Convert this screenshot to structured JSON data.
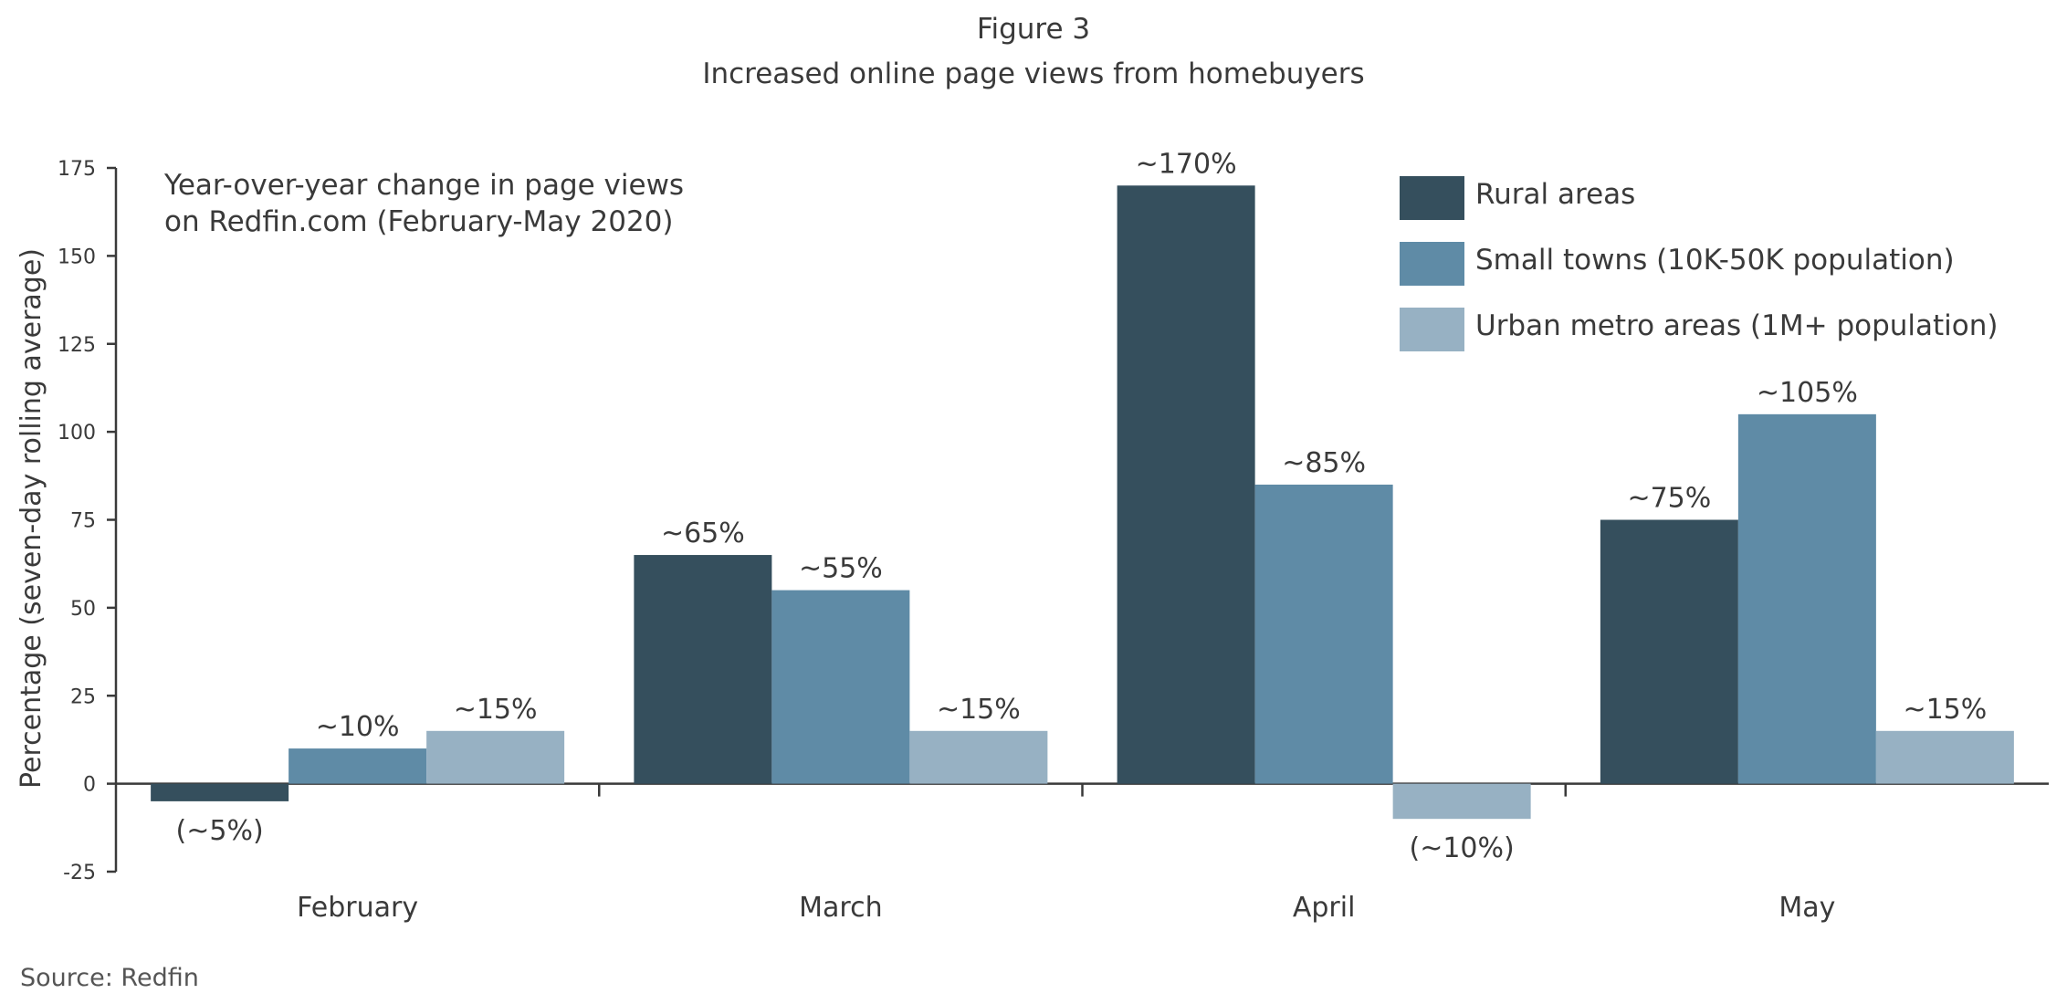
{
  "figure": {
    "label": "Figure 3",
    "title": "Increased online page views from homebuyers",
    "source": "Source: Redfin"
  },
  "colors": {
    "rural": "#354f5d",
    "small_towns": "#5f8ba6",
    "urban": "#97b1c3",
    "axis": "#3a3a3a",
    "text": "#3a3a3a"
  },
  "chart_data": {
    "type": "bar",
    "subtitle_lines": [
      "Year-over-year change in page views",
      "on Redfin.com (February-May 2020)"
    ],
    "ylabel": "Percentage (seven-day rolling average)",
    "xlabel": "",
    "ylim": [
      -25,
      175
    ],
    "yticks": [
      -25,
      0,
      25,
      50,
      75,
      100,
      125,
      150,
      175
    ],
    "grid": false,
    "legend_position": "top-right",
    "categories": [
      "February",
      "March",
      "April",
      "May"
    ],
    "series": [
      {
        "name": "Rural areas",
        "color_key": "rural",
        "values": [
          -5,
          65,
          170,
          75
        ],
        "labels": [
          "(~5%)",
          "~65%",
          "~170%",
          "~75%"
        ]
      },
      {
        "name": "Small towns (10K-50K population)",
        "color_key": "small_towns",
        "values": [
          10,
          55,
          85,
          105
        ],
        "labels": [
          "~10%",
          "~55%",
          "~85%",
          "~105%"
        ]
      },
      {
        "name": "Urban metro areas (1M+ population)",
        "color_key": "urban",
        "values": [
          15,
          15,
          -10,
          15
        ],
        "labels": [
          "~15%",
          "~15%",
          "(~10%)",
          "~15%"
        ]
      }
    ]
  }
}
